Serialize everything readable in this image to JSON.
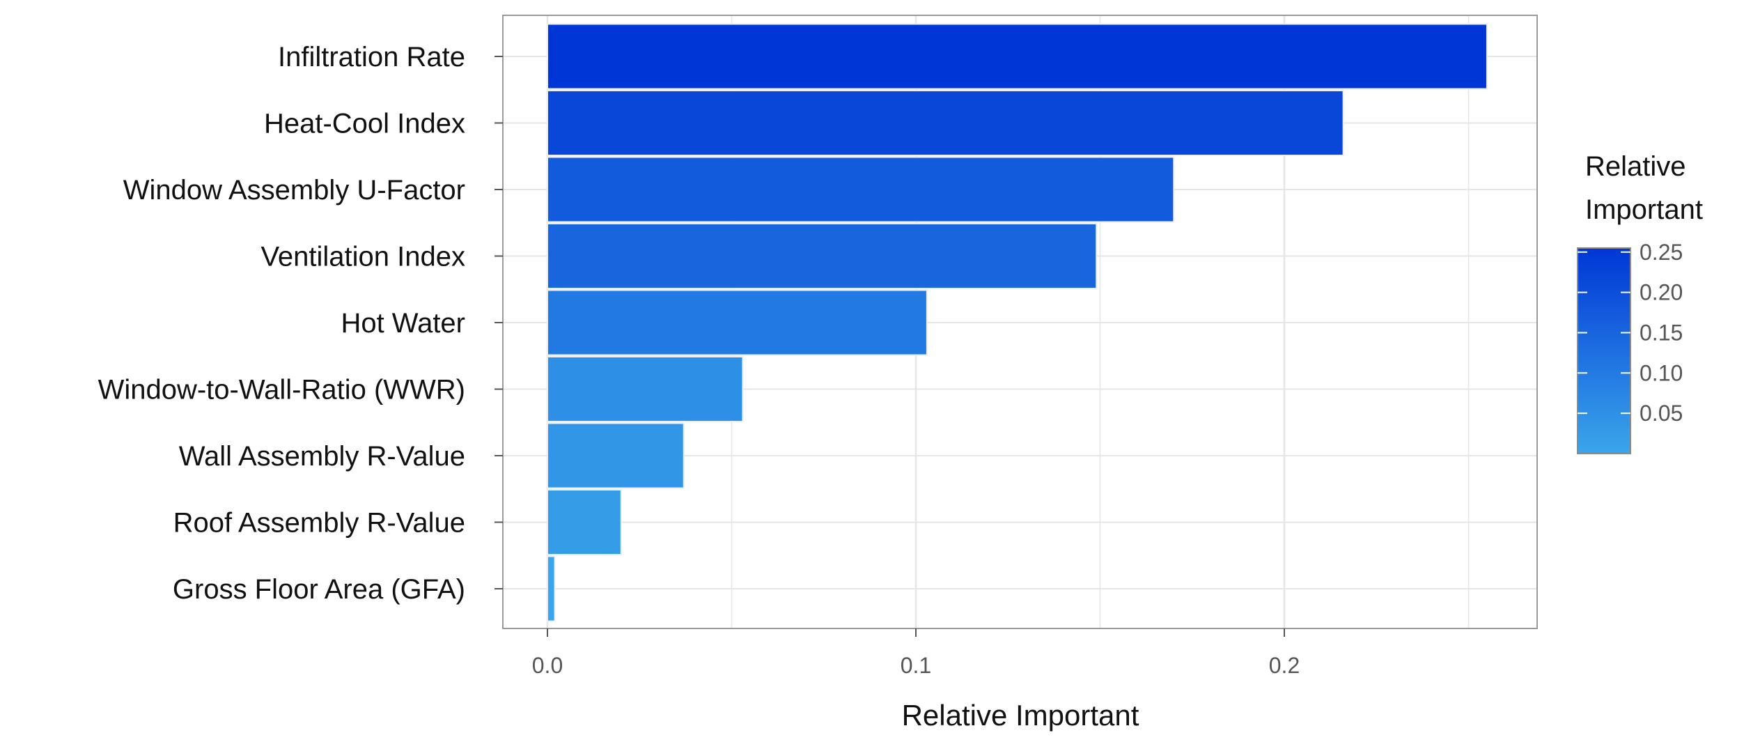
{
  "chart_data": {
    "type": "bar",
    "orientation": "horizontal",
    "categories": [
      "Infiltration Rate",
      "Heat-Cool Index",
      "Window Assembly U-Factor",
      "Ventilation Index",
      "Hot Water",
      "Window-to-Wall-Ratio (WWR)",
      "Wall Assembly R-Value",
      "Roof Assembly R-Value",
      "Gross Floor Area (GFA)"
    ],
    "values": [
      0.255,
      0.216,
      0.17,
      0.149,
      0.103,
      0.053,
      0.037,
      0.02,
      0.002
    ],
    "title": "",
    "xlabel": "Relative Important",
    "ylabel": "",
    "xlim": [
      0,
      0.268
    ],
    "xticks": [
      0.0,
      0.1,
      0.2
    ],
    "xtick_labels": [
      "0.0",
      "0.1",
      "0.2"
    ],
    "grid": true,
    "legend": {
      "type": "colorbar",
      "placement": "right",
      "title_lines": [
        "Relative",
        "Important"
      ],
      "range": [
        0,
        0.255
      ],
      "ticks": [
        0.05,
        0.1,
        0.15,
        0.2,
        0.25
      ],
      "tick_labels": [
        "0.05",
        "0.10",
        "0.15",
        "0.20",
        "0.25"
      ],
      "low_color": "#3aa6ea",
      "high_color": "#0036d6"
    },
    "colors": {
      "grid": "#e6e6e6",
      "panel_border": "#9a9a9a",
      "bar_outline": "#e8eef8"
    }
  }
}
